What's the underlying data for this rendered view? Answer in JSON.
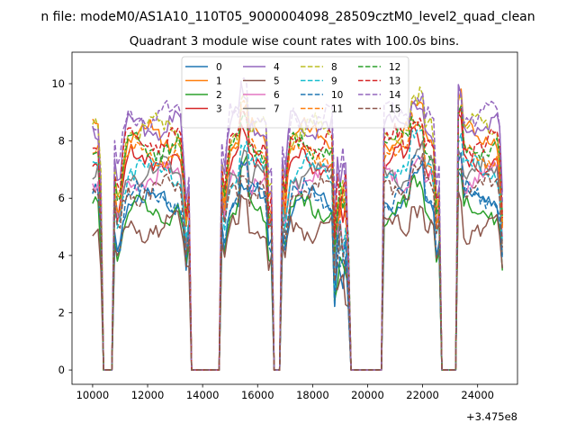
{
  "figure_title": "n file: modeM0/AS1A10_110T05_9000004098_28509cztM0_level2_quad_clean",
  "chart_data": {
    "type": "line",
    "title": "Quadrant 3 module wise count rates with 100.0s bins.",
    "xlabel": "",
    "ylabel": "",
    "x_offset_label": "+3.475e8",
    "xlim": [
      9250,
      25450
    ],
    "ylim": [
      -0.5,
      11.1
    ],
    "x_ticks": [
      10000,
      12000,
      14000,
      16000,
      18000,
      20000,
      22000,
      24000
    ],
    "x_tick_labels": [
      "10000",
      "12000",
      "14000",
      "16000",
      "18000",
      "20000",
      "22000",
      "24000"
    ],
    "y_ticks": [
      0,
      2,
      4,
      6,
      8,
      10
    ],
    "y_tick_labels": [
      "0",
      "2",
      "4",
      "6",
      "8",
      "10"
    ],
    "grid": false,
    "legend_position": "top-center",
    "legend_ncol": 4,
    "segments": [
      {
        "start": 10000,
        "end": 10300,
        "dip": "down"
      },
      {
        "start": 10800,
        "end": 13500,
        "dip": "both"
      },
      {
        "start": 14700,
        "end": 16500,
        "dip": "both"
      },
      {
        "start": 16900,
        "end": 18700,
        "dip": "up"
      },
      {
        "start": 18750,
        "end": 19300,
        "dip": "both"
      },
      {
        "start": 20600,
        "end": 22600,
        "dip": "down"
      },
      {
        "start": 23300,
        "end": 24950,
        "dip": "down"
      }
    ],
    "gaps": [
      [
        10400,
        10700
      ],
      [
        13600,
        14600
      ],
      [
        16600,
        16800
      ],
      [
        19400,
        20500
      ],
      [
        22700,
        23200
      ]
    ],
    "series": [
      {
        "name": "0",
        "color": "#1f77b4",
        "dash": "solid",
        "base": 5.9
      },
      {
        "name": "1",
        "color": "#ff7f0e",
        "dash": "solid",
        "base": 8.2
      },
      {
        "name": "2",
        "color": "#2ca02c",
        "dash": "solid",
        "base": 5.6
      },
      {
        "name": "3",
        "color": "#d62728",
        "dash": "solid",
        "base": 7.3
      },
      {
        "name": "4",
        "color": "#9467bd",
        "dash": "solid",
        "base": 8.6
      },
      {
        "name": "5",
        "color": "#8c564b",
        "dash": "solid",
        "base": 5.0
      },
      {
        "name": "6",
        "color": "#e377c2",
        "dash": "solid",
        "base": 6.7
      },
      {
        "name": "7",
        "color": "#7f7f7f",
        "dash": "solid",
        "base": 6.9
      },
      {
        "name": "8",
        "color": "#bcbd22",
        "dash": "dashed",
        "base": 8.4
      },
      {
        "name": "9",
        "color": "#17becf",
        "dash": "dashed",
        "base": 7.0
      },
      {
        "name": "10",
        "color": "#1f77b4",
        "dash": "dashed",
        "base": 6.1
      },
      {
        "name": "11",
        "color": "#ff7f0e",
        "dash": "dashed",
        "base": 7.6
      },
      {
        "name": "12",
        "color": "#2ca02c",
        "dash": "dashed",
        "base": 7.8
      },
      {
        "name": "13",
        "color": "#d62728",
        "dash": "dashed",
        "base": 8.0
      },
      {
        "name": "14",
        "color": "#9467bd",
        "dash": "dashed",
        "base": 8.9
      },
      {
        "name": "15",
        "color": "#8c564b",
        "dash": "dashed",
        "base": 6.3
      }
    ]
  }
}
